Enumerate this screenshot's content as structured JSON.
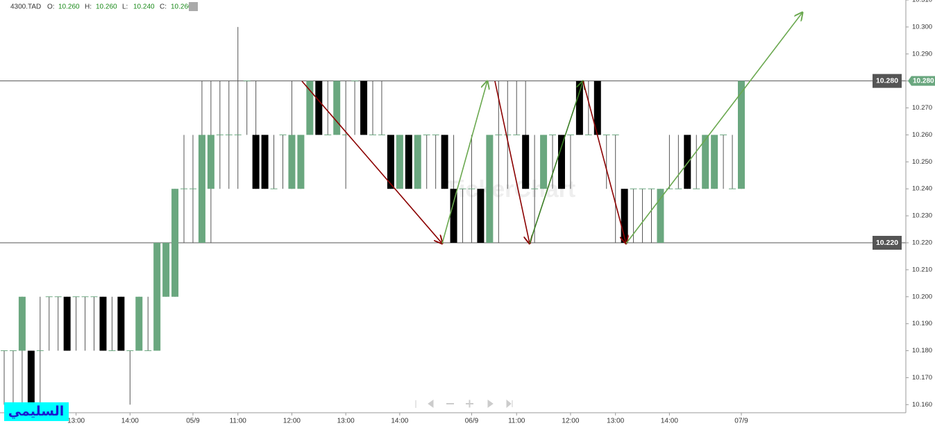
{
  "chart_data": {
    "type": "candlestick",
    "symbol": "4300.TAD",
    "ohlc_header": [
      {
        "key": "O:",
        "value": "10.260"
      },
      {
        "key": "H:",
        "value": "10.260"
      },
      {
        "key": "L:",
        "value": "10.240"
      },
      {
        "key": "C:",
        "value": "10.260"
      }
    ],
    "watermark": "TickerChart",
    "corner_label": "السليمي",
    "up_color": "#6aa77f",
    "down_color": "#000000",
    "categories": [
      null,
      null,
      null,
      null,
      null,
      null,
      null,
      null,
      "13:00",
      null,
      null,
      null,
      null,
      null,
      "14:00",
      null,
      null,
      null,
      null,
      null,
      null,
      "05/9",
      null,
      null,
      null,
      null,
      "11:00",
      null,
      null,
      null,
      null,
      null,
      "12:00",
      null,
      null,
      null,
      null,
      null,
      "13:00",
      null,
      null,
      null,
      null,
      null,
      "14:00",
      null,
      null,
      null,
      null,
      null,
      null,
      null,
      "06/9",
      null,
      null,
      null,
      null,
      "11:00",
      null,
      null,
      null,
      null,
      null,
      "12:00",
      null,
      null,
      null,
      null,
      "13:00",
      null,
      null,
      null,
      null,
      null,
      "14:00",
      null,
      null,
      null,
      null,
      null,
      null,
      null,
      "07/9"
    ],
    "series": {
      "open": [
        10.18,
        10.18,
        10.18,
        10.18,
        10.18,
        10.2,
        10.2,
        10.2,
        10.2,
        10.2,
        10.2,
        10.2,
        10.18,
        10.2,
        10.18,
        10.18,
        10.18,
        10.18,
        10.2,
        10.2,
        10.24,
        10.24,
        10.22,
        10.24,
        10.26,
        10.26,
        10.26,
        10.28,
        10.26,
        10.26,
        10.24,
        10.26,
        10.24,
        10.24,
        10.26,
        10.28,
        10.26,
        10.26,
        10.26,
        10.28,
        10.28,
        10.26,
        10.26,
        10.26,
        10.24,
        10.26,
        10.24,
        10.26,
        10.26,
        10.26,
        10.24,
        10.24,
        10.24,
        10.24,
        10.22,
        10.26,
        10.26,
        10.26,
        10.26,
        10.24,
        10.24,
        10.26,
        10.26,
        10.26,
        10.28,
        10.26,
        10.28,
        10.26,
        10.26,
        10.24,
        10.24,
        10.24,
        10.24,
        10.22,
        10.24,
        10.24,
        10.26,
        10.24,
        10.24,
        10.24,
        10.26,
        10.24,
        10.24
      ],
      "high": [
        10.18,
        10.18,
        10.2,
        10.18,
        10.2,
        10.2,
        10.2,
        10.2,
        10.2,
        10.2,
        10.2,
        10.2,
        10.2,
        10.2,
        10.18,
        10.2,
        10.2,
        10.22,
        10.22,
        10.24,
        10.26,
        10.26,
        10.28,
        10.28,
        10.28,
        10.28,
        10.3,
        10.28,
        10.28,
        10.26,
        10.26,
        10.26,
        10.28,
        10.26,
        10.28,
        10.28,
        10.28,
        10.28,
        10.28,
        10.28,
        10.28,
        10.28,
        10.28,
        10.26,
        10.26,
        10.26,
        10.26,
        10.26,
        10.26,
        10.26,
        10.26,
        10.24,
        10.26,
        10.24,
        10.26,
        10.28,
        10.28,
        10.28,
        10.28,
        10.26,
        10.26,
        10.26,
        10.26,
        10.26,
        10.28,
        10.28,
        10.28,
        10.26,
        10.26,
        10.24,
        10.24,
        10.24,
        10.24,
        10.24,
        10.26,
        10.26,
        10.26,
        10.26,
        10.26,
        10.26,
        10.26,
        10.26,
        10.28
      ],
      "low": [
        10.16,
        10.16,
        10.16,
        10.16,
        10.16,
        10.18,
        10.18,
        10.18,
        10.18,
        10.18,
        10.18,
        10.18,
        10.18,
        10.18,
        10.16,
        10.18,
        10.18,
        10.18,
        10.2,
        10.2,
        10.22,
        10.22,
        10.22,
        10.22,
        10.24,
        10.24,
        10.24,
        10.26,
        10.24,
        10.24,
        10.24,
        10.24,
        10.24,
        10.24,
        10.26,
        10.26,
        10.26,
        10.26,
        10.24,
        10.26,
        10.26,
        10.26,
        10.26,
        10.24,
        10.24,
        10.24,
        10.24,
        10.24,
        10.24,
        10.24,
        10.22,
        10.22,
        10.22,
        10.22,
        10.22,
        10.22,
        10.24,
        10.26,
        10.24,
        10.22,
        10.24,
        10.24,
        10.24,
        10.24,
        10.26,
        10.26,
        10.26,
        10.24,
        10.22,
        10.22,
        10.22,
        10.22,
        10.22,
        10.22,
        10.24,
        10.24,
        10.24,
        10.24,
        10.24,
        10.24,
        10.24,
        10.24,
        10.24
      ],
      "close": [
        10.18,
        10.18,
        10.2,
        10.16,
        10.18,
        10.2,
        10.2,
        10.18,
        10.2,
        10.2,
        10.2,
        10.18,
        10.18,
        10.18,
        10.18,
        10.2,
        10.18,
        10.22,
        10.22,
        10.24,
        10.24,
        10.24,
        10.26,
        10.26,
        10.26,
        10.26,
        10.26,
        10.28,
        10.24,
        10.24,
        10.24,
        10.26,
        10.26,
        10.26,
        10.28,
        10.26,
        10.26,
        10.28,
        10.26,
        10.28,
        10.26,
        10.26,
        10.26,
        10.24,
        10.26,
        10.24,
        10.26,
        10.26,
        10.26,
        10.24,
        10.22,
        10.24,
        10.24,
        10.22,
        10.26,
        10.26,
        10.26,
        10.26,
        10.24,
        10.24,
        10.26,
        10.26,
        10.24,
        10.26,
        10.26,
        10.26,
        10.26,
        10.26,
        10.26,
        10.22,
        10.24,
        10.24,
        10.24,
        10.24,
        10.24,
        10.24,
        10.24,
        10.24,
        10.26,
        10.26,
        10.26,
        10.24,
        10.28
      ]
    },
    "ylim": [
      10.157,
      10.31
    ],
    "yticks": [
      {
        "value": 10.16,
        "label": "10.160"
      },
      {
        "value": 10.17,
        "label": "10.170"
      },
      {
        "value": 10.18,
        "label": "10.180"
      },
      {
        "value": 10.19,
        "label": "10.190"
      },
      {
        "value": 10.2,
        "label": "10.200"
      },
      {
        "value": 10.21,
        "label": "10.210"
      },
      {
        "value": 10.22,
        "label": "10.220"
      },
      {
        "value": 10.23,
        "label": "10.230"
      },
      {
        "value": 10.24,
        "label": "10.240"
      },
      {
        "value": 10.25,
        "label": "10.250"
      },
      {
        "value": 10.26,
        "label": "10.260"
      },
      {
        "value": 10.27,
        "label": "10.270"
      },
      {
        "value": 10.28,
        "label": "10.280"
      },
      {
        "value": 10.29,
        "label": "10.290"
      },
      {
        "value": 10.3,
        "label": "10.300"
      },
      {
        "value": 10.31,
        "label": "10.310"
      }
    ],
    "level_lines": [
      {
        "value": 10.28,
        "label": "10.280"
      },
      {
        "value": 10.22,
        "label": "10.220"
      }
    ],
    "last_price": {
      "value": 10.28,
      "label": "10.280"
    }
  }
}
